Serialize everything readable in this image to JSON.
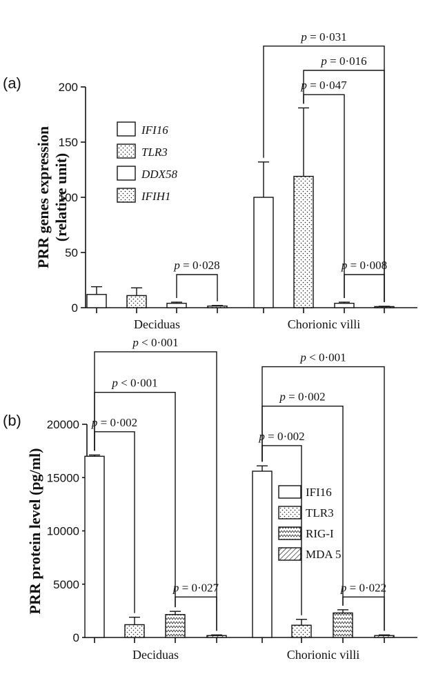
{
  "chart_data": [
    {
      "panel": "(a)",
      "type": "bar",
      "ylabel_line1": "PRR genes expression",
      "ylabel_line2": "(relative unit)",
      "ylim": [
        0,
        200
      ],
      "yticks": [
        "0",
        "50",
        "100",
        "150",
        "200"
      ],
      "ytick_values": [
        0,
        50,
        100,
        150,
        200
      ],
      "categories": [
        "Deciduas",
        "Chorionic villi"
      ],
      "legend_italic": true,
      "series": [
        {
          "name": "IFI16",
          "pattern": "white",
          "values": [
            12,
            100
          ],
          "errors": [
            7,
            32
          ]
        },
        {
          "name": "TLR3",
          "pattern": "dots",
          "values": [
            11,
            119
          ],
          "errors": [
            7,
            62
          ]
        },
        {
          "name": "DDX58",
          "pattern": "white",
          "values": [
            4,
            4
          ],
          "errors": [
            1,
            1
          ]
        },
        {
          "name": "IFIH1",
          "pattern": "dots",
          "values": [
            1.5,
            1
          ],
          "errors": [
            0.5,
            0.3
          ]
        }
      ],
      "comparisons": [
        {
          "label": "p = 0·028",
          "cat": 0,
          "from": 2,
          "to": 3,
          "bracket_y": 30
        },
        {
          "label": "p = 0·008",
          "cat": 1,
          "from": 2,
          "to": 3,
          "bracket_y": 30
        },
        {
          "label": "p = 0·047",
          "cat": 1,
          "from": 1,
          "to": 2,
          "bracket_y": 193
        },
        {
          "label": "p = 0·016",
          "cat": 1,
          "from": 1,
          "to": 3,
          "bracket_y": 215
        },
        {
          "label": "p = 0·031",
          "cat": 1,
          "from": 0,
          "to": 3,
          "bracket_y": 237
        }
      ]
    },
    {
      "panel": "(b)",
      "type": "bar",
      "ylabel_line1": "PRR protein level (pg/ml)",
      "ylim": [
        0,
        20000
      ],
      "yticks": [
        "0",
        "5000",
        "10000",
        "15000",
        "20000"
      ],
      "ytick_values": [
        0,
        5000,
        10000,
        15000,
        20000
      ],
      "categories": [
        "Deciduas",
        "Chorionic villi"
      ],
      "legend_italic": false,
      "series": [
        {
          "name": "IFI16",
          "pattern": "white",
          "values": [
            17000,
            15600
          ],
          "errors": [
            120,
            500
          ]
        },
        {
          "name": "TLR3",
          "pattern": "dots",
          "values": [
            1200,
            1150
          ],
          "errors": [
            700,
            550
          ]
        },
        {
          "name": "RIG-I",
          "pattern": "zigzag",
          "values": [
            2150,
            2300
          ],
          "errors": [
            300,
            300
          ]
        },
        {
          "name": "MDA 5",
          "pattern": "hatch",
          "values": [
            180,
            180
          ],
          "errors": [
            60,
            60
          ]
        }
      ],
      "comparisons": [
        {
          "label": "p = 0·027",
          "cat": 0,
          "from": 2,
          "to": 3,
          "bracket_y": 3800
        },
        {
          "label": "p = 0·022",
          "cat": 1,
          "from": 2,
          "to": 3,
          "bracket_y": 3800
        },
        {
          "label": "p = 0·002",
          "cat": 0,
          "from": 0,
          "to": 1,
          "bracket_y": 19300
        },
        {
          "label": "p < 0·001",
          "cat": 0,
          "from": 0,
          "to": 2,
          "bracket_y": 23000
        },
        {
          "label": "p < 0·001",
          "cat": 0,
          "from": 0,
          "to": 3,
          "bracket_y": 26800
        },
        {
          "label": "p = 0·002",
          "cat": 1,
          "from": 0,
          "to": 1,
          "bracket_y": 18000
        },
        {
          "label": "p = 0·002",
          "cat": 1,
          "from": 0,
          "to": 2,
          "bracket_y": 21700
        },
        {
          "label": "p < 0·001",
          "cat": 1,
          "from": 0,
          "to": 3,
          "bracket_y": 25400
        }
      ]
    }
  ]
}
